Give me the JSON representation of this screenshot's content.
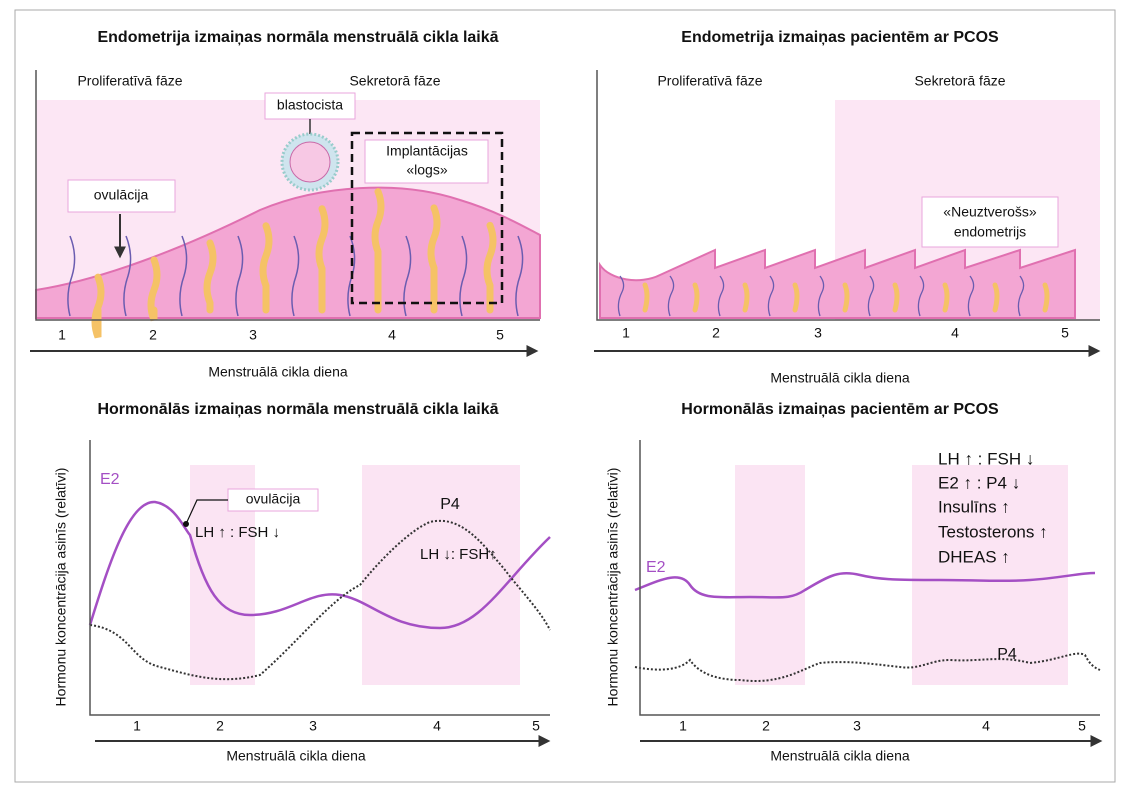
{
  "panels": [
    {
      "title": "Endometrija izmaiņas normāla menstruālā cikla laikā",
      "phases": [
        "Proliferatīvā fāze",
        "Sekretorā fāze"
      ],
      "blastocyst_label": "blastocista",
      "window_label": [
        "Implantācijas",
        "«logs»"
      ],
      "ovulation_label": "ovulācija",
      "x_ticks": [
        "1",
        "2",
        "3",
        "4",
        "5"
      ],
      "x_label": "Menstruālā cikla diena"
    },
    {
      "title": "Endometrija izmaiņas pacientēm ar PCOS",
      "phases": [
        "Proliferatīvā fāze",
        "Sekretorā fāze"
      ],
      "note": [
        "«Neuztverošs»",
        "endometrijs"
      ],
      "x_ticks": [
        "1",
        "2",
        "3",
        "4",
        "5"
      ],
      "x_label": "Menstruālā cikla diena"
    },
    {
      "title": "Hormonālās izmaiņas normāla menstruālā cikla laikā",
      "y_label": "Hormonu koncentrācija asinīs (relatīvi)",
      "series_labels": [
        "E2",
        "P4"
      ],
      "ovulation_label": "ovulācija",
      "annotations": [
        "LH ↑ : FSH ↓",
        "LH ↓: FSH↑"
      ],
      "x_ticks": [
        "1",
        "2",
        "3",
        "4",
        "5"
      ],
      "x_label": "Menstruālā cikla diena"
    },
    {
      "title": "Hormonālās izmaiņas pacientēm ar PCOS",
      "y_label": "Hormonu koncentrācija asinīs (relatīvi)",
      "series_labels": [
        "E2",
        "P4"
      ],
      "changes": [
        "LH ↑ : FSH ↓",
        "E2 ↑ : P4 ↓",
        "Insulīns ↑",
        "Testosterons ↑",
        "DHEAS ↑"
      ],
      "x_ticks": [
        "1",
        "2",
        "3",
        "4",
        "5"
      ],
      "x_label": "Menstruālā cikla diena"
    }
  ]
}
